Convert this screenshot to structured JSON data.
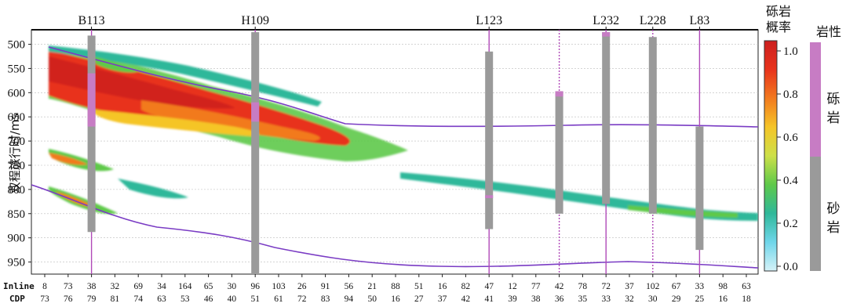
{
  "chart_data": {
    "type": "heatmap",
    "ylabel": "双程旅行时/ms",
    "y_ticks": [
      500,
      550,
      600,
      650,
      700,
      750,
      800,
      850,
      900,
      950
    ],
    "ylim": [
      470,
      975
    ],
    "wells": [
      {
        "name": "B113",
        "x_index": 2
      },
      {
        "name": "H109",
        "x_index": 9
      },
      {
        "name": "L123",
        "x_index": 19
      },
      {
        "name": "",
        "x_index": 22
      },
      {
        "name": "L232",
        "x_index": 24
      },
      {
        "name": "L228",
        "x_index": 26
      },
      {
        "name": "L83",
        "x_index": 28
      }
    ],
    "inline_label": "Inline",
    "cdp_label": "CDP",
    "inline": [
      "8",
      "73",
      "38",
      "32",
      "69",
      "34",
      "164",
      "65",
      "30",
      "96",
      "103",
      "26",
      "91",
      "56",
      "21",
      "88",
      "51",
      "16",
      "82",
      "47",
      "12",
      "77",
      "42",
      "78",
      "72",
      "37",
      "102",
      "67",
      "33",
      "98",
      "63"
    ],
    "cdp": [
      "73",
      "76",
      "79",
      "81",
      "74",
      "63",
      "53",
      "46",
      "40",
      "51",
      "61",
      "72",
      "83",
      "94",
      "50",
      "16",
      "27",
      "37",
      "42",
      "41",
      "39",
      "38",
      "36",
      "35",
      "33",
      "32",
      "30",
      "29",
      "25",
      "16",
      "18"
    ],
    "colorbar": {
      "title_line1": "砾岩",
      "title_line2": "概率",
      "ticks": [
        "1.0",
        "0.8",
        "0.6",
        "0.4",
        "0.2",
        "0.0"
      ],
      "stops": [
        "#cc1f1f",
        "#e8331c",
        "#f27a1e",
        "#f5c528",
        "#cde049",
        "#5ec94a",
        "#2fb89a",
        "#6fd6ea",
        "#d6f2f8"
      ]
    },
    "lithology": {
      "title": "岩性",
      "classes": [
        {
          "name": "砾岩",
          "color": "#c77cc4"
        },
        {
          "name": "砂岩",
          "color": "#9a9a9a"
        }
      ]
    }
  }
}
